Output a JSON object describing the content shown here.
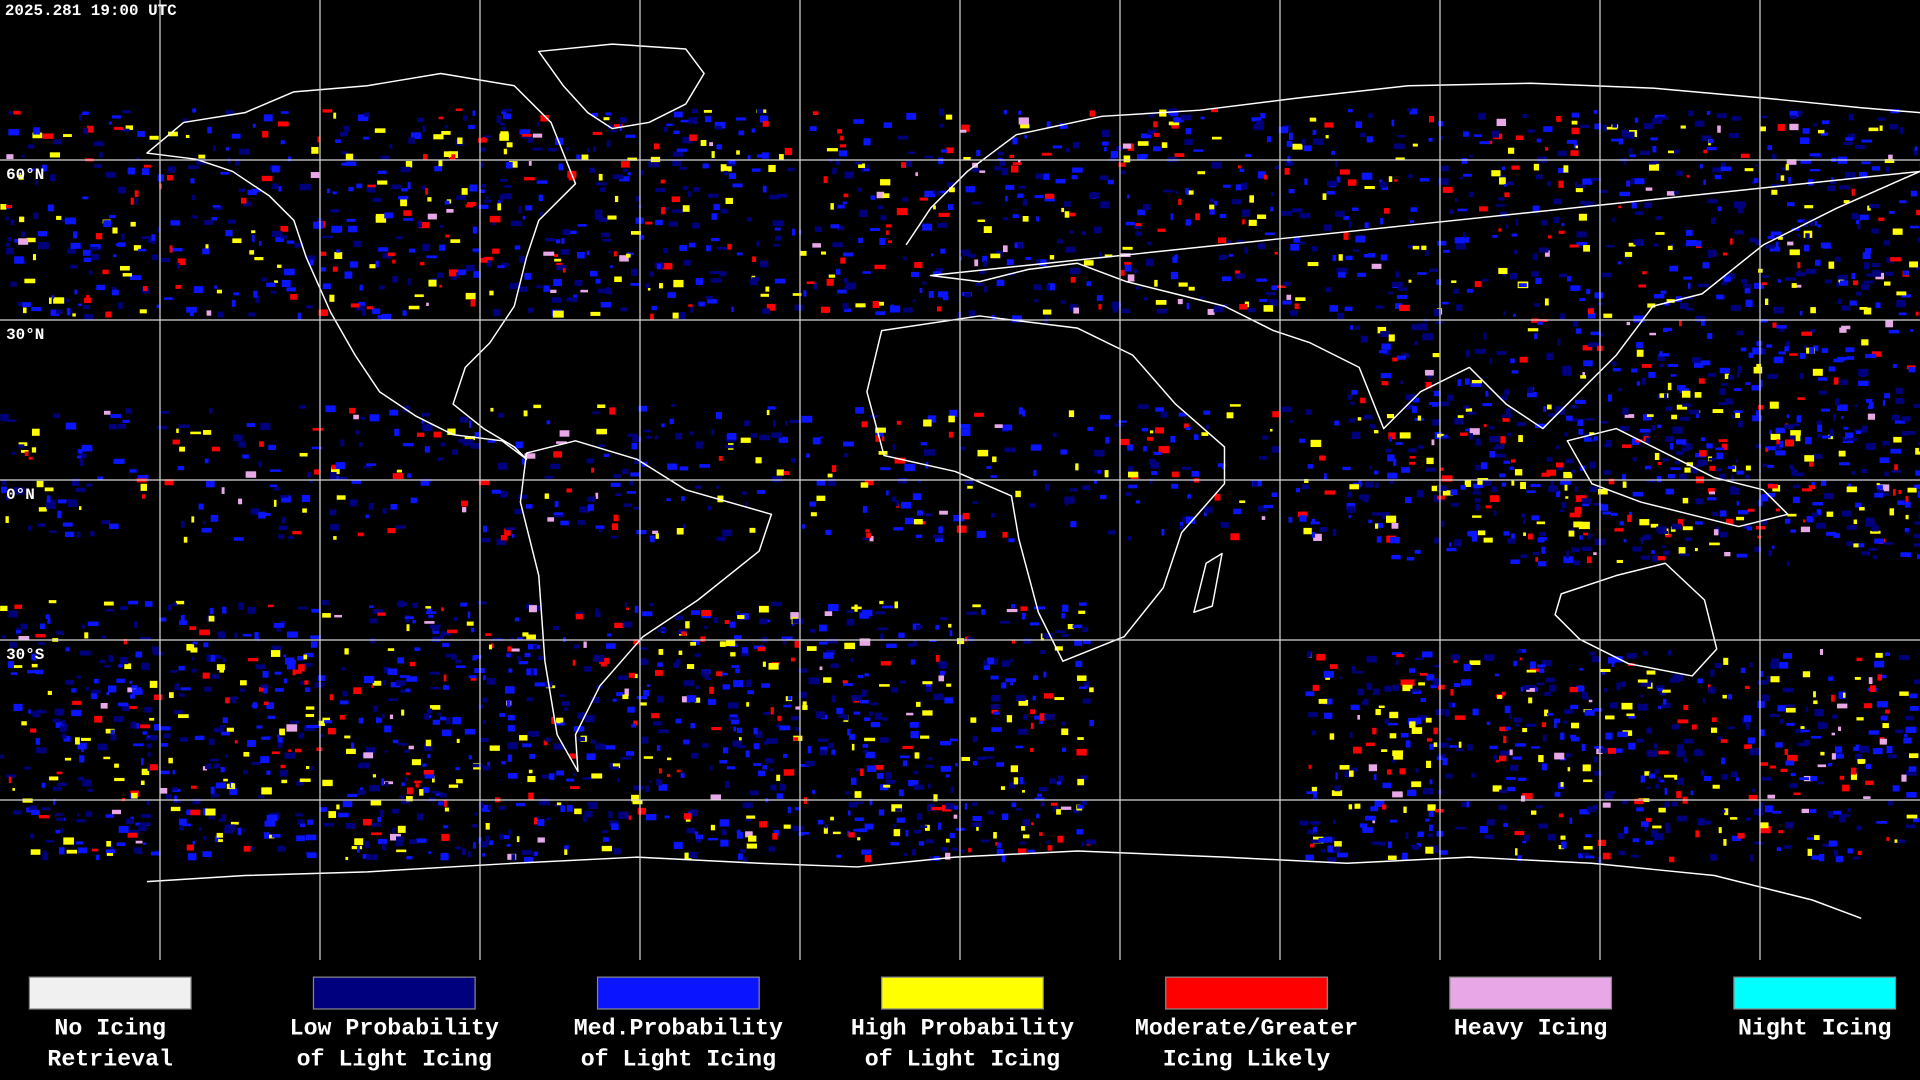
{
  "header": {
    "timestamp": "2025.281 19:00 UTC"
  },
  "map": {
    "lat_labels": [
      "60°N",
      "30°N",
      "0°N",
      "30°S"
    ]
  },
  "legend": [
    {
      "lines": [
        "No Icing",
        "Retrieval"
      ],
      "color": "#f0f0f0"
    },
    {
      "lines": [
        "Low Probability",
        "of Light Icing"
      ],
      "color": "#00007e"
    },
    {
      "lines": [
        "Med.Probability",
        "of Light Icing"
      ],
      "color": "#0a14ff"
    },
    {
      "lines": [
        "High Probability",
        "of Light Icing"
      ],
      "color": "#ffff00"
    },
    {
      "lines": [
        "Moderate/Greater",
        "Icing Likely"
      ],
      "color": "#ff0000"
    },
    {
      "lines": [
        "Heavy Icing"
      ],
      "color": "#e8a8e8"
    },
    {
      "lines": [
        "Night Icing"
      ],
      "color": "#00ffff"
    }
  ]
}
